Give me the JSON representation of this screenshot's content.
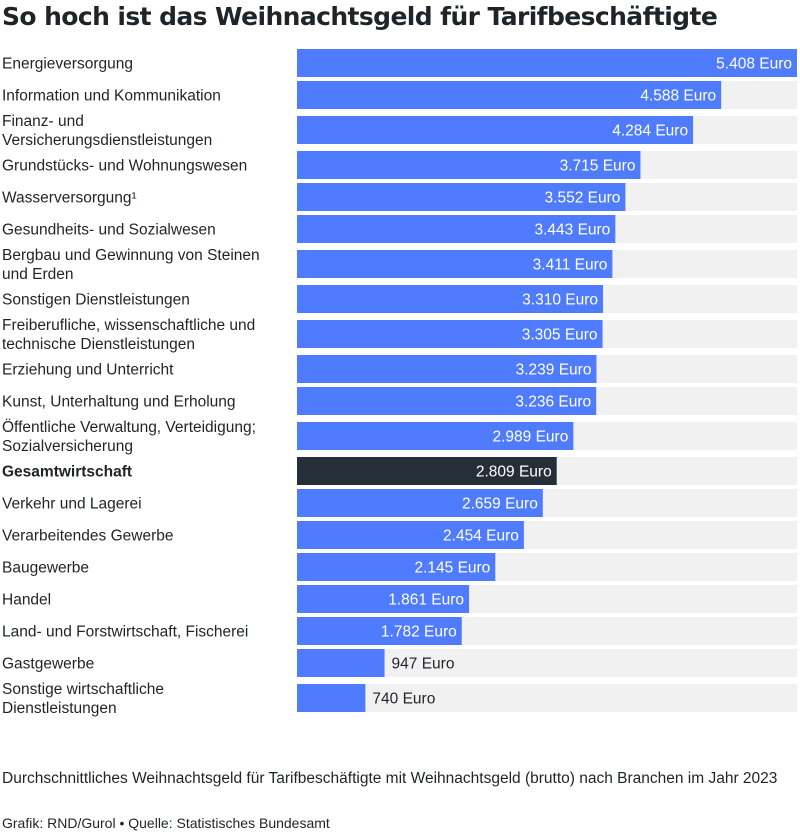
{
  "title": "So hoch ist das Weihnachtsgeld für Tarifbeschäftigte",
  "description": "Durchschnittliches Weihnachtsgeld für Tarifbeschäftigte mit Weihnachtsgeld (brutto) nach Branchen im Jahr 2023",
  "credit": "Grafik: RND/Gurol • Quelle: Statistisches Bundesamt",
  "colors": {
    "bar": "#4f7cff",
    "highlight": "#262e38",
    "track": "#f1f1f1",
    "text": "#1f2428"
  },
  "chart_data": {
    "type": "bar",
    "orientation": "horizontal",
    "unit": "Euro",
    "xlim": [
      0,
      5408
    ],
    "categories": [
      [
        "Energieversorgung"
      ],
      [
        "Information und Kommunikation"
      ],
      [
        "Finanz- und",
        "Versicherungsdienstleistungen"
      ],
      [
        "Grundstücks- und Wohnungswesen"
      ],
      [
        "Wasserversorgung¹"
      ],
      [
        "Gesundheits- und Sozialwesen"
      ],
      [
        "Bergbau und Gewinnung von Steinen",
        "und Erden"
      ],
      [
        "Sonstigen Dienstleistungen"
      ],
      [
        "Freiberufliche, wissenschaftliche und",
        "technische Dienstleistungen"
      ],
      [
        "Erziehung und Unterricht"
      ],
      [
        "Kunst, Unterhaltung und Erholung"
      ],
      [
        "Öffentliche Verwaltung, Verteidigung;",
        "Sozialversicherung"
      ],
      [
        "Gesamtwirtschaft"
      ],
      [
        "Verkehr und Lagerei"
      ],
      [
        "Verarbeitendes Gewerbe"
      ],
      [
        "Baugewerbe"
      ],
      [
        "Handel"
      ],
      [
        "Land- und Forstwirtschaft, Fischerei"
      ],
      [
        "Gastgewerbe"
      ],
      [
        "Sonstige wirtschaftliche",
        "Dienstleistungen"
      ]
    ],
    "values": [
      5408,
      4588,
      4284,
      3715,
      3552,
      3443,
      3411,
      3310,
      3305,
      3239,
      3236,
      2989,
      2809,
      2659,
      2454,
      2145,
      1861,
      1782,
      947,
      740
    ],
    "value_labels": [
      "5.408 Euro",
      "4.588 Euro",
      "4.284 Euro",
      "3.715 Euro",
      "3.552 Euro",
      "3.443 Euro",
      "3.411 Euro",
      "3.310 Euro",
      "3.305 Euro",
      "3.239 Euro",
      "3.236 Euro",
      "2.989 Euro",
      "2.809 Euro",
      "2.659 Euro",
      "2.454 Euro",
      "2.145 Euro",
      "1.861 Euro",
      "1.782 Euro",
      "947 Euro",
      "740 Euro"
    ],
    "highlight": "Gesamtwirtschaft"
  }
}
